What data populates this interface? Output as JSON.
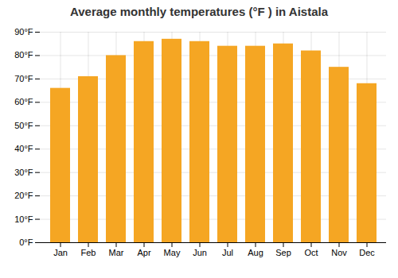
{
  "chart_data": {
    "type": "bar",
    "title": "Average monthly temperatures (°F ) in Aistala",
    "categories": [
      "Jan",
      "Feb",
      "Mar",
      "Apr",
      "May",
      "Jun",
      "Jul",
      "Aug",
      "Sep",
      "Oct",
      "Nov",
      "Dec"
    ],
    "values": [
      66,
      71,
      80,
      86,
      87,
      86,
      84,
      84,
      85,
      82,
      75,
      68
    ],
    "color": "#F5A623",
    "ylim": [
      0,
      90
    ],
    "yticks": [
      {
        "value": 0,
        "label": "0°F"
      },
      {
        "value": 10,
        "label": "10°F"
      },
      {
        "value": 20,
        "label": "20°F"
      },
      {
        "value": 30,
        "label": "30°F"
      },
      {
        "value": 40,
        "label": "40°F"
      },
      {
        "value": 50,
        "label": "50°F"
      },
      {
        "value": 60,
        "label": "60°F"
      },
      {
        "value": 70,
        "label": "70°F"
      },
      {
        "value": 80,
        "label": "80°F"
      },
      {
        "value": 90,
        "label": "90°F"
      }
    ],
    "grid": true
  }
}
